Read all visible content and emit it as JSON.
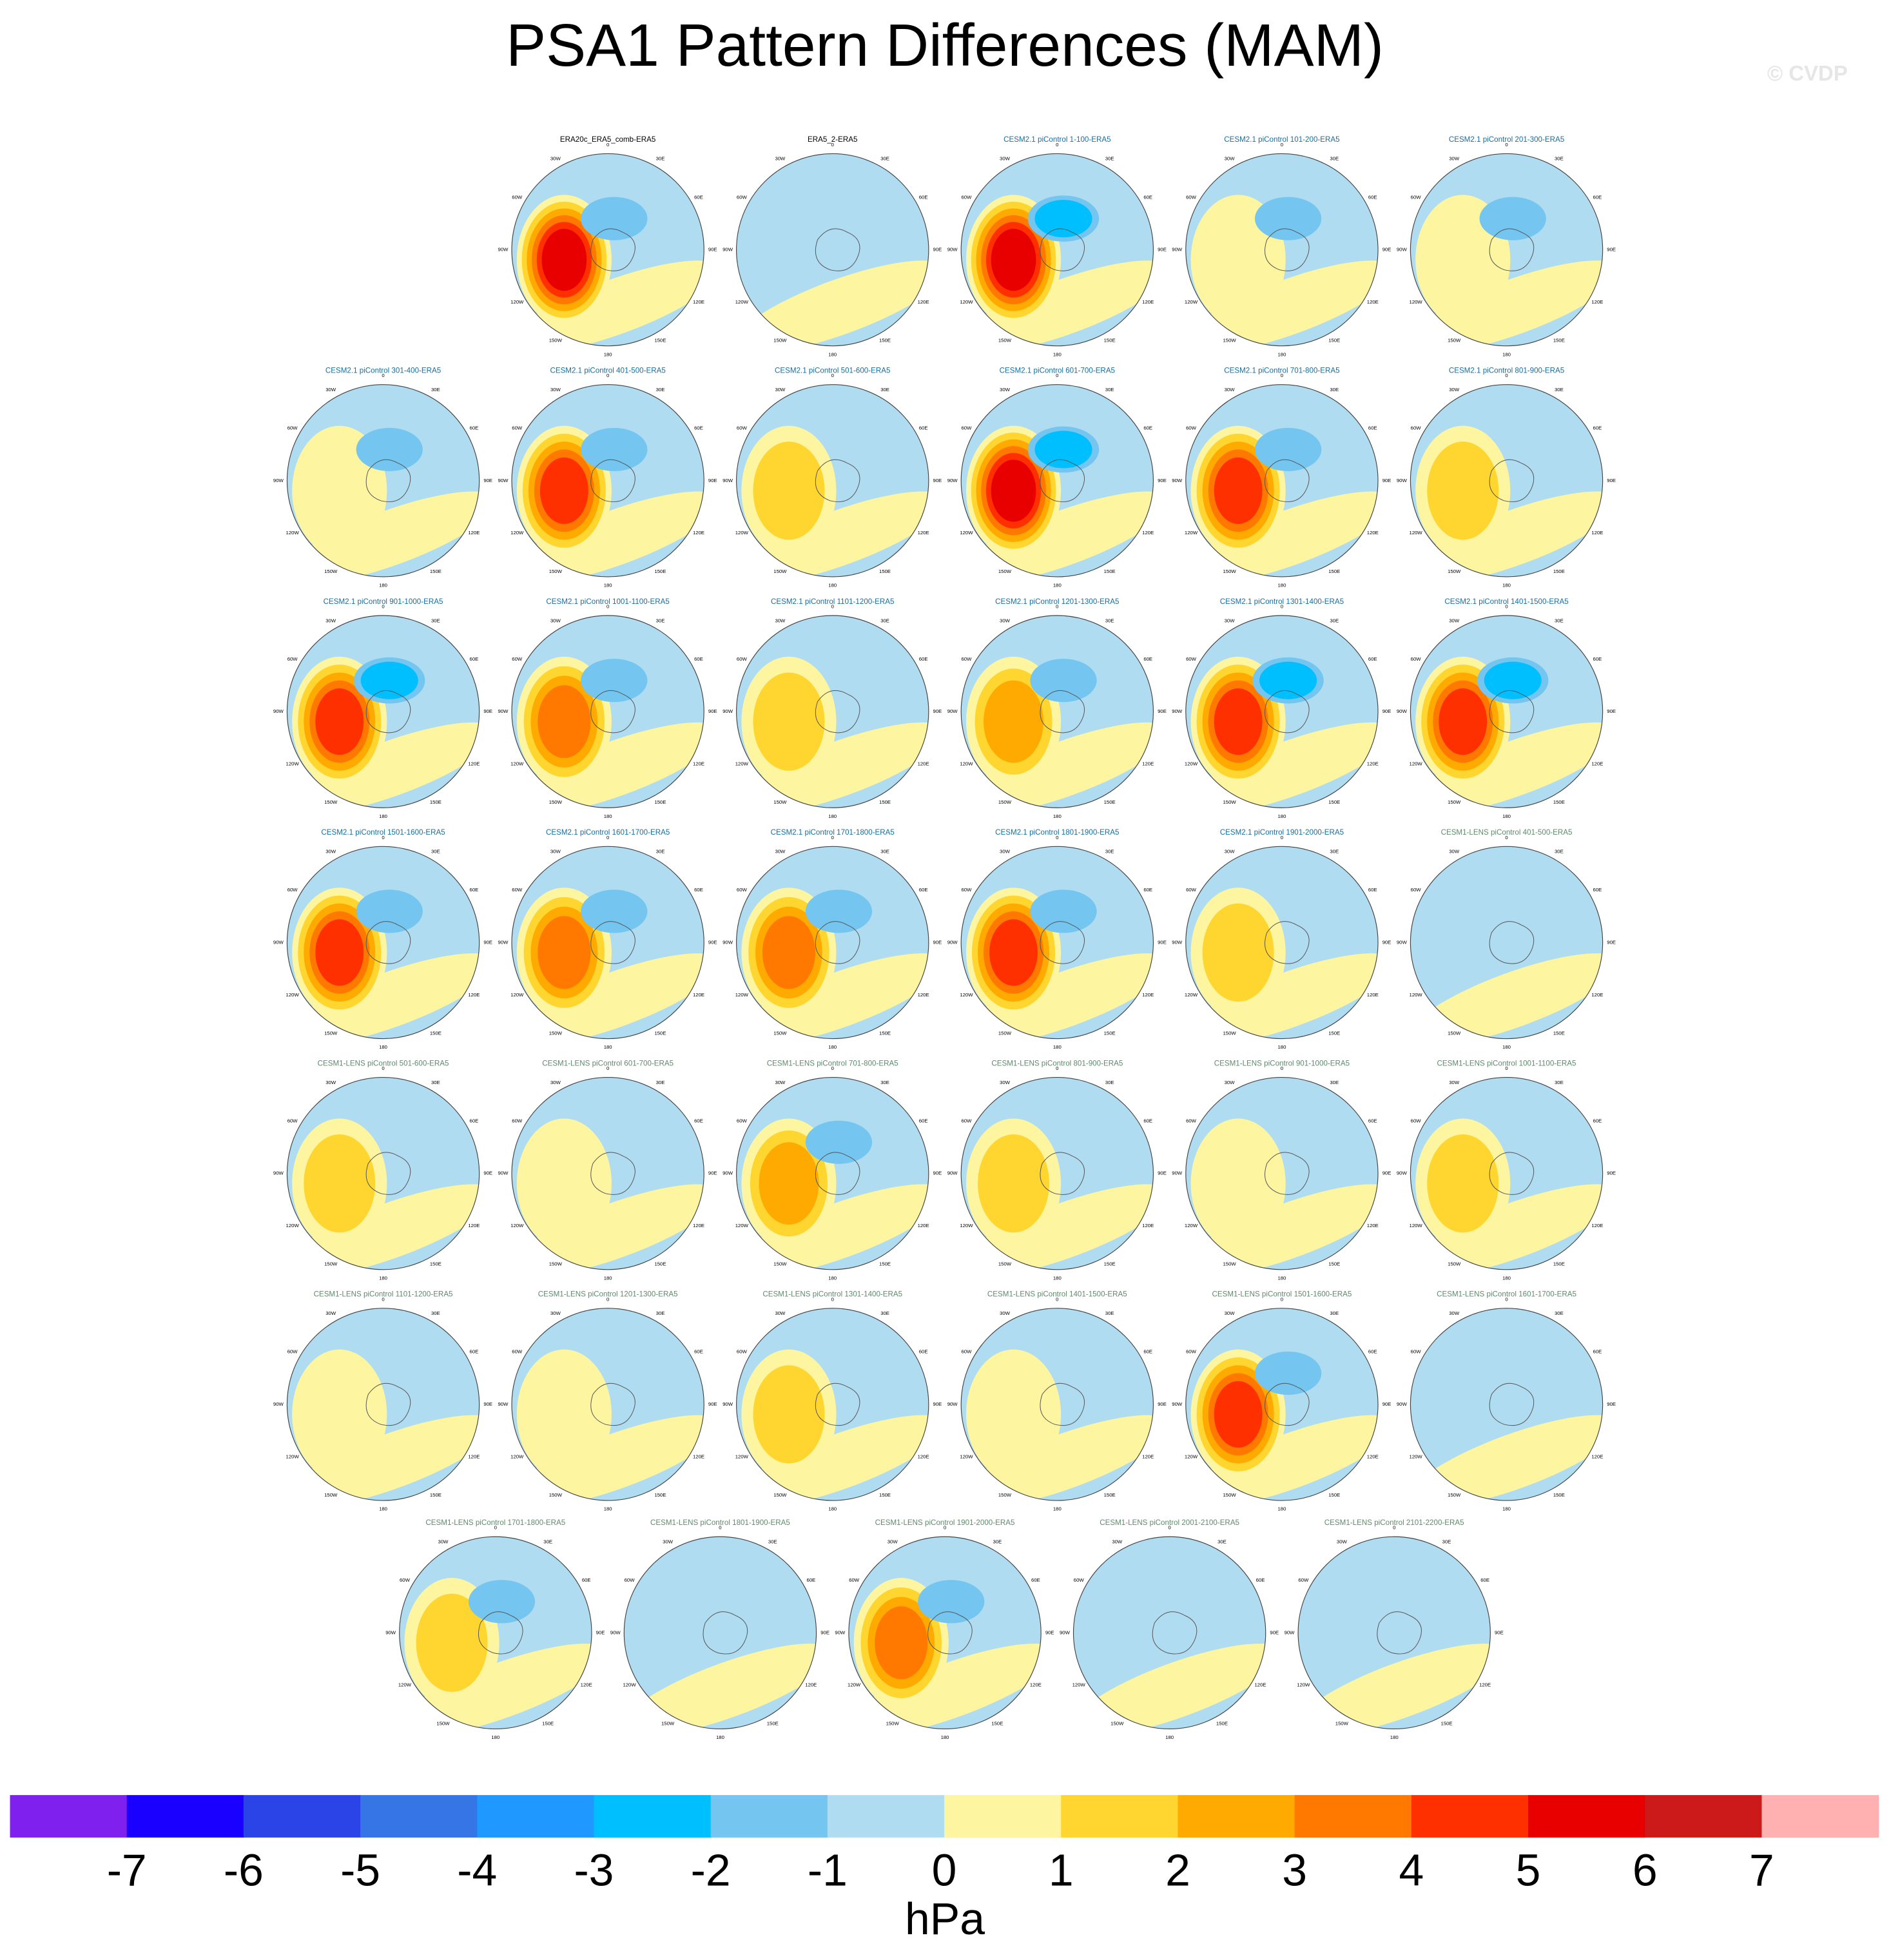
{
  "chart_data": {
    "type": "polar_map",
    "title": "PSA1 Pattern Differences (MAM)",
    "watermark": "© CVDP",
    "map_labels": [
      "0",
      "30E",
      "60E",
      "90E",
      "120E",
      "150E",
      "180",
      "150W",
      "120W",
      "90W",
      "60W",
      "30W"
    ],
    "panels": [
      {
        "title": "ERA20c_ERA5_comb-ERA5",
        "color": "#000000",
        "max": 6,
        "min": -2
      },
      {
        "title": "ERA5_2-ERA5",
        "color": "#000000",
        "max": 0,
        "min": -1
      },
      {
        "title": "CESM2.1 piControl 1-100-ERA5",
        "color": "#1a6e9e",
        "max": 6,
        "min": -3
      },
      {
        "title": "CESM2.1 piControl 101-200-ERA5",
        "color": "#1a6e9e",
        "max": 1,
        "min": -2
      },
      {
        "title": "CESM2.1 piControl 201-300-ERA5",
        "color": "#1a6e9e",
        "max": 1,
        "min": -2
      },
      {
        "title": "CESM2.1 piControl 301-400-ERA5",
        "color": "#1a6e9e",
        "max": 1,
        "min": -2
      },
      {
        "title": "CESM2.1 piControl 401-500-ERA5",
        "color": "#1a6e9e",
        "max": 5,
        "min": -2
      },
      {
        "title": "CESM2.1 piControl 501-600-ERA5",
        "color": "#1a6e9e",
        "max": 2,
        "min": -1
      },
      {
        "title": "CESM2.1 piControl 601-700-ERA5",
        "color": "#1a6e9e",
        "max": 6,
        "min": -3
      },
      {
        "title": "CESM2.1 piControl 701-800-ERA5",
        "color": "#1a6e9e",
        "max": 5,
        "min": -2
      },
      {
        "title": "CESM2.1 piControl 801-900-ERA5",
        "color": "#1a6e9e",
        "max": 2,
        "min": -1
      },
      {
        "title": "CESM2.1 piControl 901-1000-ERA5",
        "color": "#1a6e9e",
        "max": 5,
        "min": -3
      },
      {
        "title": "CESM2.1 piControl 1001-1100-ERA5",
        "color": "#1a6e9e",
        "max": 4,
        "min": -2
      },
      {
        "title": "CESM2.1 piControl 1101-1200-ERA5",
        "color": "#1a6e9e",
        "max": 2,
        "min": -1
      },
      {
        "title": "CESM2.1 piControl 1201-1300-ERA5",
        "color": "#1a6e9e",
        "max": 3,
        "min": -2
      },
      {
        "title": "CESM2.1 piControl 1301-1400-ERA5",
        "color": "#1a6e9e",
        "max": 5,
        "min": -3
      },
      {
        "title": "CESM2.1 piControl 1401-1500-ERA5",
        "color": "#1a6e9e",
        "max": 5,
        "min": -3
      },
      {
        "title": "CESM2.1 piControl 1501-1600-ERA5",
        "color": "#1a6e9e",
        "max": 5,
        "min": -2
      },
      {
        "title": "CESM2.1 piControl 1601-1700-ERA5",
        "color": "#1a6e9e",
        "max": 4,
        "min": -2
      },
      {
        "title": "CESM2.1 piControl 1701-1800-ERA5",
        "color": "#1a6e9e",
        "max": 4,
        "min": -2
      },
      {
        "title": "CESM2.1 piControl 1801-1900-ERA5",
        "color": "#1a6e9e",
        "max": 5,
        "min": -2
      },
      {
        "title": "CESM2.1 piControl 1901-2000-ERA5",
        "color": "#1a6e9e",
        "max": 2,
        "min": -1
      },
      {
        "title": "CESM1-LENS piControl 401-500-ERA5",
        "color": "#5f8a6e",
        "max": 0,
        "min": -1
      },
      {
        "title": "CESM1-LENS piControl 501-600-ERA5",
        "color": "#5f8a6e",
        "max": 2,
        "min": -1
      },
      {
        "title": "CESM1-LENS piControl 601-700-ERA5",
        "color": "#5f8a6e",
        "max": 1,
        "min": -1
      },
      {
        "title": "CESM1-LENS piControl 701-800-ERA5",
        "color": "#5f8a6e",
        "max": 3,
        "min": -2
      },
      {
        "title": "CESM1-LENS piControl 801-900-ERA5",
        "color": "#5f8a6e",
        "max": 2,
        "min": -1
      },
      {
        "title": "CESM1-LENS piControl 901-1000-ERA5",
        "color": "#5f8a6e",
        "max": 1,
        "min": -1
      },
      {
        "title": "CESM1-LENS piControl 1001-1100-ERA5",
        "color": "#5f8a6e",
        "max": 2,
        "min": -1
      },
      {
        "title": "CESM1-LENS piControl 1101-1200-ERA5",
        "color": "#5f8a6e",
        "max": 1,
        "min": -1
      },
      {
        "title": "CESM1-LENS piControl 1201-1300-ERA5",
        "color": "#5f8a6e",
        "max": 1,
        "min": -1
      },
      {
        "title": "CESM1-LENS piControl 1301-1400-ERA5",
        "color": "#5f8a6e",
        "max": 2,
        "min": -1
      },
      {
        "title": "CESM1-LENS piControl 1401-1500-ERA5",
        "color": "#5f8a6e",
        "max": 1,
        "min": -1
      },
      {
        "title": "CESM1-LENS piControl 1501-1600-ERA5",
        "color": "#5f8a6e",
        "max": 5,
        "min": -2
      },
      {
        "title": "CESM1-LENS piControl 1601-1700-ERA5",
        "color": "#5f8a6e",
        "max": 0,
        "min": -1
      },
      {
        "title": "CESM1-LENS piControl 1701-1800-ERA5",
        "color": "#5f8a6e",
        "max": 2,
        "min": -2
      },
      {
        "title": "CESM1-LENS piControl 1801-1900-ERA5",
        "color": "#5f8a6e",
        "max": 0,
        "min": -1
      },
      {
        "title": "CESM1-LENS piControl 1901-2000-ERA5",
        "color": "#5f8a6e",
        "max": 4,
        "min": -2
      },
      {
        "title": "CESM1-LENS piControl 2001-2100-ERA5",
        "color": "#5f8a6e",
        "max": 0,
        "min": -1
      },
      {
        "title": "CESM1-LENS piControl 2101-2200-ERA5",
        "color": "#5f8a6e",
        "max": 0,
        "min": -1
      }
    ],
    "colorbar": {
      "label": "hPa",
      "colors": [
        "#8020ef",
        "#1a00ff",
        "#2a44e8",
        "#3575e6",
        "#1f99ff",
        "#00bfff",
        "#74c6f0",
        "#b0dcf2",
        "#fdf5a0",
        "#ffd630",
        "#ffaa00",
        "#ff7800",
        "#ff3000",
        "#e80000",
        "#cc1a1a",
        "#ffb0b0"
      ],
      "ticks": [
        -7,
        -6,
        -5,
        -4,
        -3,
        -2,
        -1,
        0,
        1,
        2,
        3,
        4,
        5,
        6,
        7
      ]
    }
  }
}
